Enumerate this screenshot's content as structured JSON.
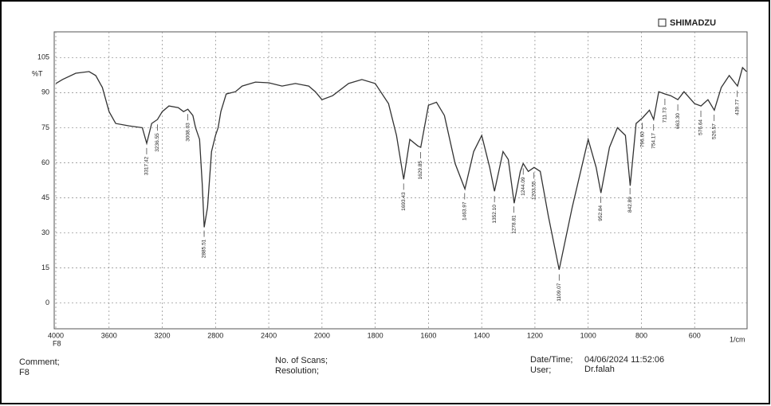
{
  "chart_data": {
    "type": "line",
    "brand": "SHIMADZU",
    "ylabel": "%T",
    "xlabel": "1/cm",
    "xlim": [
      4000,
      400
    ],
    "xscale_break": 2000,
    "xticks": [
      4000,
      3600,
      3200,
      2800,
      2400,
      2000,
      1800,
      1600,
      1400,
      1200,
      1000,
      800,
      600
    ],
    "x_start_note": "F8",
    "ylim": [
      -11,
      116
    ],
    "yticks": [
      0,
      15,
      30,
      45,
      60,
      75,
      90,
      105
    ],
    "grid": true,
    "color": "#333333",
    "x": [
      4000,
      3950,
      3850,
      3750,
      3700,
      3650,
      3600,
      3550,
      3450,
      3350,
      3317,
      3280,
      3236,
      3200,
      3150,
      3080,
      3040,
      3008,
      2970,
      2950,
      2920,
      2900,
      2885,
      2860,
      2830,
      2800,
      2780,
      2760,
      2720,
      2650,
      2600,
      2500,
      2400,
      2300,
      2200,
      2100,
      2050,
      2000,
      1960,
      1900,
      1850,
      1800,
      1750,
      1720,
      1693,
      1670,
      1640,
      1629,
      1600,
      1570,
      1540,
      1500,
      1463,
      1430,
      1400,
      1370,
      1352,
      1320,
      1300,
      1278,
      1255,
      1244,
      1225,
      1203,
      1180,
      1150,
      1109,
      1060,
      1000,
      970,
      952,
      920,
      890,
      860,
      842,
      820,
      796,
      770,
      754,
      735,
      711,
      690,
      663,
      640,
      600,
      576,
      550,
      526,
      500,
      470,
      439,
      420,
      405
    ],
    "values": [
      93.9,
      95.6,
      98.3,
      99,
      97.3,
      92.2,
      81.9,
      76.8,
      75.8,
      75,
      68.3,
      76.8,
      78.5,
      81.9,
      84.3,
      83.6,
      81.9,
      82.9,
      80.2,
      75,
      70,
      51.2,
      32.4,
      41,
      64.8,
      71.7,
      75,
      81.9,
      89.4,
      90.4,
      92.8,
      94.5,
      94.2,
      92.8,
      93.9,
      92.8,
      90.4,
      87,
      88.7,
      93.9,
      95.6,
      93.9,
      85.3,
      71.7,
      52.9,
      70,
      67.2,
      66.6,
      84.6,
      85.9,
      80.2,
      59.7,
      48.8,
      64.8,
      71.7,
      58,
      47.8,
      64.8,
      61.4,
      42.7,
      56.3,
      59.7,
      56.3,
      58,
      56.3,
      37.5,
      14.3,
      41,
      70,
      58,
      47.1,
      66.6,
      75,
      71.7,
      50.2,
      76.8,
      79.2,
      82.5,
      78.5,
      90.4,
      89.4,
      88.7,
      87,
      90.4,
      85.3,
      84.3,
      87,
      82.5,
      92.2,
      97.3,
      92.8,
      100.7,
      99
    ],
    "peaks": [
      {
        "value": 3317.42,
        "label": "3317.42"
      },
      {
        "value": 3236.55,
        "label": "3236.55"
      },
      {
        "value": 3008.03,
        "label": "3008.03"
      },
      {
        "value": 2885.51,
        "label": "2885.51"
      },
      {
        "value": 1693.43,
        "label": "1693.43"
      },
      {
        "value": 1629.85,
        "label": "1629.85"
      },
      {
        "value": 1463.97,
        "label": "1463.97"
      },
      {
        "value": 1352.1,
        "label": "1352.10"
      },
      {
        "value": 1278.81,
        "label": "1278.81"
      },
      {
        "value": 1244.09,
        "label": "1244.09"
      },
      {
        "value": 1203.55,
        "label": "1203.55"
      },
      {
        "value": 1109.07,
        "label": "1109.07"
      },
      {
        "value": 952.84,
        "label": "952.84"
      },
      {
        "value": 842.89,
        "label": "842.89"
      },
      {
        "value": 796.6,
        "label": "796.60"
      },
      {
        "value": 754.17,
        "label": "754.17"
      },
      {
        "value": 711.73,
        "label": "711.73"
      },
      {
        "value": 663.3,
        "label": "663.30"
      },
      {
        "value": 576.64,
        "label": "576.64"
      },
      {
        "value": 526.57,
        "label": "526.57"
      },
      {
        "value": 439.77,
        "label": "439.77"
      }
    ]
  },
  "footer": {
    "comment_label": "Comment;",
    "comment": "F8",
    "scans_label": "No. of Scans;",
    "resolution_label": "Resolution;",
    "datetime_label": "Date/Time;",
    "datetime": "04/06/2024 11:52:06",
    "user_label": "User;",
    "user": "Dr.falah"
  }
}
